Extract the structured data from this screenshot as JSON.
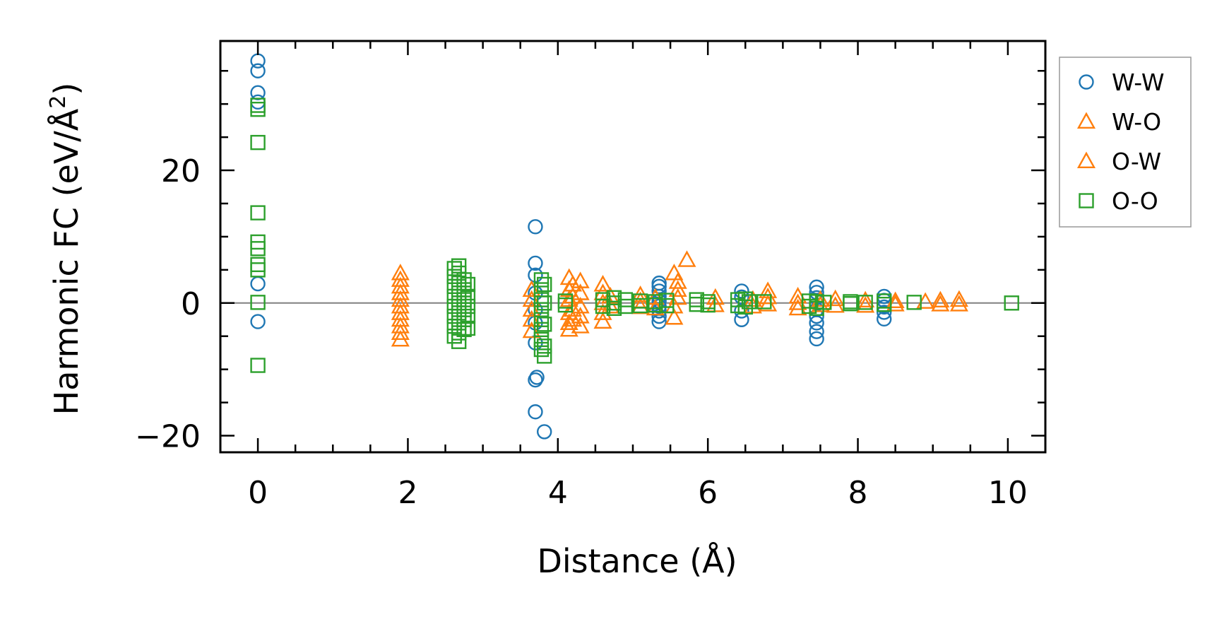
{
  "chart_data": {
    "type": "scatter",
    "title": "",
    "xlabel": "Distance (Å)",
    "ylabel_prefix": "Harmonic FC (eV/Å",
    "ylabel_sup": "2",
    "ylabel_suffix": ")",
    "xlim": [
      -0.5,
      10.5
    ],
    "ylim": [
      -22.5,
      39.5
    ],
    "xticks": [
      0,
      2,
      4,
      6,
      8,
      10
    ],
    "xtick_labels": [
      "0",
      "2",
      "4",
      "6",
      "8",
      "10"
    ],
    "yticks": [
      -20,
      0,
      20
    ],
    "ytick_labels": [
      "−20",
      "0",
      "20"
    ],
    "zero_line": true,
    "grid": false,
    "legend_position": "outside-right-top",
    "series": [
      {
        "name": "W-W",
        "marker": "circle",
        "color": "#1f77b4",
        "points": [
          [
            0,
            36.5
          ],
          [
            0,
            35
          ],
          [
            0,
            31.7
          ],
          [
            0,
            30.3
          ],
          [
            0,
            2.9
          ],
          [
            0,
            -2.8
          ],
          [
            3.7,
            11.5
          ],
          [
            3.7,
            6
          ],
          [
            3.7,
            4.2
          ],
          [
            3.7,
            1.5
          ],
          [
            3.7,
            -1
          ],
          [
            3.7,
            -3
          ],
          [
            3.7,
            -6
          ],
          [
            3.72,
            -11.2
          ],
          [
            3.7,
            -11.6
          ],
          [
            3.7,
            -16.4
          ],
          [
            3.82,
            -19.4
          ],
          [
            5.35,
            3
          ],
          [
            5.35,
            2.5
          ],
          [
            5.35,
            1.8
          ],
          [
            5.35,
            1
          ],
          [
            5.35,
            0.3
          ],
          [
            5.35,
            -0.5
          ],
          [
            5.35,
            -1.2
          ],
          [
            5.35,
            -2
          ],
          [
            5.35,
            -2.8
          ],
          [
            6.45,
            1.8
          ],
          [
            6.45,
            0.9
          ],
          [
            6.45,
            -1.2
          ],
          [
            6.45,
            -2.5
          ],
          [
            7.45,
            2.4
          ],
          [
            7.45,
            1.6
          ],
          [
            7.45,
            0.8
          ],
          [
            7.45,
            -1
          ],
          [
            7.45,
            -2
          ],
          [
            7.45,
            -3
          ],
          [
            7.45,
            -4.3
          ],
          [
            7.45,
            -5.4
          ],
          [
            8.35,
            1
          ],
          [
            8.35,
            0.4
          ],
          [
            8.35,
            -0.6
          ],
          [
            8.35,
            -1.4
          ],
          [
            8.35,
            -2.4
          ]
        ]
      },
      {
        "name": "W-O",
        "marker": "triangle",
        "color": "#ff7f0e",
        "points": [
          [
            1.9,
            4.5
          ],
          [
            1.9,
            3.5
          ],
          [
            1.9,
            2.5
          ],
          [
            1.9,
            1.5
          ],
          [
            1.9,
            0.5
          ],
          [
            1.9,
            -0.5
          ],
          [
            1.9,
            -1.5
          ],
          [
            1.9,
            -2.5
          ],
          [
            1.9,
            -3.5
          ],
          [
            1.9,
            -4.5
          ],
          [
            1.9,
            -5.5
          ],
          [
            3.65,
            2
          ],
          [
            3.65,
            0.5
          ],
          [
            3.65,
            -1
          ],
          [
            3.65,
            -2.5
          ],
          [
            3.65,
            -4.2
          ],
          [
            4.15,
            3.8
          ],
          [
            4.15,
            2
          ],
          [
            4.15,
            0.5
          ],
          [
            4.15,
            -1.5
          ],
          [
            4.15,
            -3
          ],
          [
            4.15,
            -4
          ],
          [
            4.3,
            3.3
          ],
          [
            4.3,
            1.5
          ],
          [
            4.3,
            -0.5
          ],
          [
            4.3,
            -2
          ],
          [
            4.3,
            -3.5
          ],
          [
            4.6,
            2.8
          ],
          [
            4.6,
            1.5
          ],
          [
            4.6,
            0
          ],
          [
            4.6,
            -1.5
          ],
          [
            4.6,
            -2.8
          ],
          [
            5.1,
            1.2
          ],
          [
            5.1,
            0.3
          ],
          [
            5.1,
            -0.6
          ],
          [
            5.55,
            4.5
          ],
          [
            5.6,
            3.2
          ],
          [
            5.6,
            2
          ],
          [
            5.6,
            0.8
          ],
          [
            5.55,
            -0.5
          ],
          [
            5.55,
            -2.2
          ],
          [
            5.72,
            6.5
          ],
          [
            6.1,
            0.8
          ],
          [
            6.1,
            -0.3
          ],
          [
            6.8,
            1.8
          ],
          [
            6.8,
            0.9
          ],
          [
            6.8,
            -0.2
          ],
          [
            7.2,
            1
          ],
          [
            7.2,
            0
          ],
          [
            7.2,
            -0.8
          ],
          [
            7.7,
            0.6
          ],
          [
            7.7,
            -0.4
          ],
          [
            8.1,
            0.4
          ],
          [
            8.1,
            -0.4
          ],
          [
            8.5,
            0.3
          ],
          [
            8.5,
            -0.2
          ],
          [
            9.1,
            0.4
          ],
          [
            9.1,
            -0.2
          ],
          [
            9.35,
            0.5
          ],
          [
            9.35,
            -0.2
          ]
        ]
      },
      {
        "name": "O-W",
        "marker": "triangle",
        "color": "#ff7f0e",
        "points": [
          [
            4.2,
            2.8
          ],
          [
            4.2,
            1
          ],
          [
            4.2,
            -1
          ],
          [
            4.2,
            -2.5
          ],
          [
            4.7,
            1
          ],
          [
            4.7,
            -0.5
          ],
          [
            5.3,
            0.8
          ],
          [
            5.3,
            -0.8
          ],
          [
            6.6,
            0.5
          ],
          [
            6.6,
            -0.5
          ],
          [
            7.5,
            0.5
          ],
          [
            7.5,
            -0.3
          ],
          [
            8.9,
            0.2
          ]
        ]
      },
      {
        "name": "O-O",
        "marker": "square",
        "color": "#2ca02c",
        "points": [
          [
            0,
            29.8
          ],
          [
            0,
            29.2
          ],
          [
            0,
            24.2
          ],
          [
            0,
            13.6
          ],
          [
            0,
            9.2
          ],
          [
            0,
            8.2
          ],
          [
            0,
            5.8
          ],
          [
            0,
            5
          ],
          [
            0,
            0.1
          ],
          [
            0,
            -9.4
          ],
          [
            2.62,
            5.2
          ],
          [
            2.62,
            4
          ],
          [
            2.62,
            2.5
          ],
          [
            2.62,
            1
          ],
          [
            2.62,
            -0.5
          ],
          [
            2.62,
            -2
          ],
          [
            2.62,
            -3.5
          ],
          [
            2.62,
            -5
          ],
          [
            2.68,
            4.5
          ],
          [
            2.68,
            3
          ],
          [
            2.68,
            1.5
          ],
          [
            2.68,
            0
          ],
          [
            2.68,
            -1.5
          ],
          [
            2.68,
            -3
          ],
          [
            2.68,
            -4.5
          ],
          [
            2.68,
            -5.8
          ],
          [
            2.75,
            3.5
          ],
          [
            2.75,
            2
          ],
          [
            2.75,
            0.5
          ],
          [
            2.75,
            -1
          ],
          [
            2.75,
            -2.5
          ],
          [
            2.75,
            -4
          ],
          [
            2.8,
            2.8
          ],
          [
            2.8,
            1
          ],
          [
            2.8,
            -0.5
          ],
          [
            2.8,
            -2
          ],
          [
            2.8,
            -3.8
          ],
          [
            2.68,
            5.6
          ],
          [
            3.78,
            3.5
          ],
          [
            3.78,
            2
          ],
          [
            3.78,
            0.5
          ],
          [
            3.78,
            -1
          ],
          [
            3.78,
            -2.5
          ],
          [
            3.78,
            -4
          ],
          [
            3.78,
            -5.5
          ],
          [
            3.78,
            -7
          ],
          [
            3.82,
            2.8
          ],
          [
            3.82,
            0
          ],
          [
            3.82,
            -3.2
          ],
          [
            3.82,
            -6.5
          ],
          [
            3.82,
            -8
          ],
          [
            4.1,
            0.3
          ],
          [
            4.1,
            -0.3
          ],
          [
            4.6,
            0.5
          ],
          [
            4.6,
            -0.5
          ],
          [
            4.75,
            0.8
          ],
          [
            4.75,
            0
          ],
          [
            4.75,
            -0.8
          ],
          [
            4.9,
            0.5
          ],
          [
            4.9,
            -0.5
          ],
          [
            5.1,
            0.3
          ],
          [
            5.1,
            -0.4
          ],
          [
            5.3,
            0.2
          ],
          [
            5.3,
            -0.3
          ],
          [
            5.45,
            0.4
          ],
          [
            5.45,
            -0.4
          ],
          [
            5.85,
            0.5
          ],
          [
            5.85,
            -0.2
          ],
          [
            6.0,
            0.2
          ],
          [
            6.0,
            -0.3
          ],
          [
            6.4,
            0.5
          ],
          [
            6.4,
            -0.4
          ],
          [
            6.5,
            0.6
          ],
          [
            6.5,
            -0.6
          ],
          [
            6.55,
            0.2
          ],
          [
            6.75,
            0.2
          ],
          [
            7.35,
            0.3
          ],
          [
            7.35,
            -0.5
          ],
          [
            7.45,
            0.2
          ],
          [
            7.45,
            -0.8
          ],
          [
            7.55,
            0.1
          ],
          [
            7.9,
            0.2
          ],
          [
            7.9,
            -0.1
          ],
          [
            8.1,
            0.1
          ],
          [
            8.35,
            0.3
          ],
          [
            8.35,
            -0.2
          ],
          [
            8.75,
            0.1
          ],
          [
            10.05,
            0
          ]
        ]
      }
    ]
  }
}
